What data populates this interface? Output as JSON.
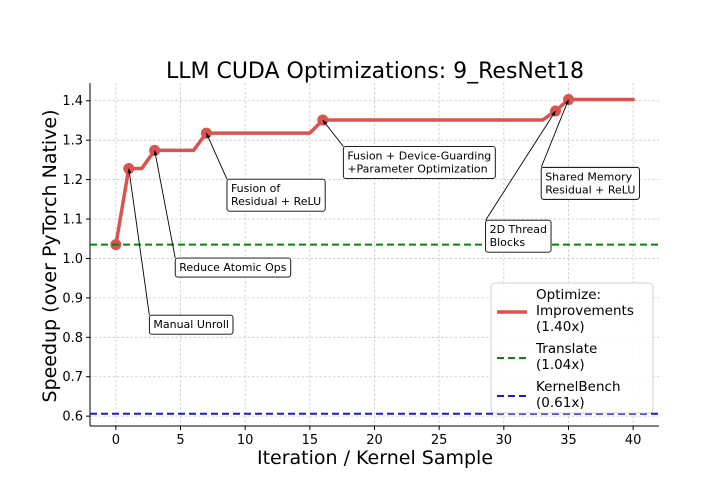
{
  "chart_data": {
    "type": "line",
    "title": "LLM CUDA Optimizations: 9_ResNet18",
    "xlabel": "Iteration / Kernel Sample",
    "ylabel": "Speedup (over PyTorch Native)",
    "xlim": [
      -2,
      42
    ],
    "ylim": [
      0.575,
      1.445
    ],
    "xticks": [
      0,
      5,
      10,
      15,
      20,
      25,
      30,
      35,
      40
    ],
    "yticks": [
      0.6,
      0.7,
      0.8,
      0.9,
      1.0,
      1.1,
      1.2,
      1.3,
      1.4
    ],
    "xtick_labels": [
      "0",
      "5",
      "10",
      "15",
      "20",
      "25",
      "30",
      "35",
      "40"
    ],
    "ytick_labels": [
      "0.6",
      "0.7",
      "0.8",
      "0.9",
      "1.0",
      "1.1",
      "1.2",
      "1.3",
      "1.4"
    ],
    "grid": true,
    "series": [
      {
        "name": "Optimize:\nImprovements\n(1.40x)",
        "color": "#d9534f",
        "style": "solid",
        "x": [
          0,
          1,
          2,
          3,
          4,
          5,
          6,
          7,
          8,
          9,
          10,
          11,
          12,
          13,
          14,
          15,
          16,
          17,
          18,
          19,
          20,
          21,
          22,
          23,
          24,
          25,
          26,
          27,
          28,
          29,
          30,
          31,
          32,
          33,
          34,
          35,
          36,
          37,
          38,
          39,
          40
        ],
        "y": [
          1.035,
          1.228,
          1.228,
          1.274,
          1.274,
          1.274,
          1.274,
          1.318,
          1.318,
          1.318,
          1.318,
          1.318,
          1.318,
          1.318,
          1.318,
          1.318,
          1.351,
          1.351,
          1.351,
          1.351,
          1.351,
          1.351,
          1.351,
          1.351,
          1.351,
          1.351,
          1.351,
          1.351,
          1.351,
          1.351,
          1.351,
          1.351,
          1.351,
          1.351,
          1.374,
          1.403,
          1.403,
          1.403,
          1.403,
          1.403,
          1.403
        ],
        "markers_at": [
          0,
          1,
          3,
          7,
          16,
          34,
          35
        ]
      },
      {
        "name": "Translate\n(1.04x)",
        "color": "#108010",
        "style": "dashed",
        "y": 1.035
      },
      {
        "name": "KernelBench\n(0.61x)",
        "color": "#1a1ad6",
        "style": "dashed",
        "y": 0.606
      }
    ],
    "annotations": [
      {
        "text": "Manual Unroll",
        "x": 1,
        "y": 1.228,
        "tx": 2.9,
        "ty": 0.823
      },
      {
        "text": "Reduce Atomic Ops",
        "x": 3,
        "y": 1.274,
        "tx": 4.9,
        "ty": 0.968
      },
      {
        "text": "Fusion of\nResidual + ReLU",
        "x": 7,
        "y": 1.318,
        "tx": 8.9,
        "ty": 1.168
      },
      {
        "text": "Fusion + Device-Guarding\n+Parameter Optimization",
        "x": 16,
        "y": 1.351,
        "tx": 17.9,
        "ty": 1.251
      },
      {
        "text": "2D Thread\nBlocks",
        "x": 34,
        "y": 1.374,
        "tx": 28.9,
        "ty": 1.064
      },
      {
        "text": "Shared Memory\nResidual + ReLU",
        "x": 35,
        "y": 1.403,
        "tx": 33.2,
        "ty": 1.198
      }
    ],
    "legend": "lower-right"
  }
}
